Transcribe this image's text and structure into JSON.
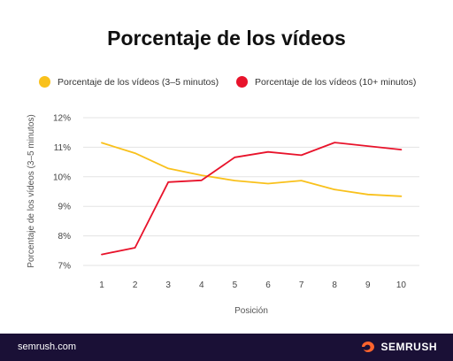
{
  "page": {
    "title": "Porcentaje de los vídeos",
    "footer_site": "semrush.com",
    "footer_brand": "SEMRUSH"
  },
  "legend": [
    {
      "label": "Porcentaje de los vídeos (3–5 minutos)",
      "color": "#f9c11c"
    },
    {
      "label": "Porcentaje de los vídeos (10+ minutos)",
      "color": "#e8132b"
    }
  ],
  "chart_data": {
    "type": "line",
    "title": "Porcentaje de los vídeos",
    "xlabel": "Posición",
    "ylabel": "Porcentaje de los vídeos (3–5 minutos)",
    "x": [
      1,
      2,
      3,
      4,
      5,
      6,
      7,
      8,
      9,
      10
    ],
    "ylim": [
      7,
      12
    ],
    "yticks": [
      7,
      8,
      9,
      10,
      11,
      12
    ],
    "ytick_labels": [
      "7%",
      "8%",
      "9%",
      "10%",
      "11%",
      "12%"
    ],
    "grid": "horizontal",
    "legend_position": "top",
    "series": [
      {
        "name": "Porcentaje de los vídeos (3–5 minutos)",
        "color": "#f9c11c",
        "values": [
          11.15,
          10.8,
          10.28,
          10.05,
          9.87,
          9.77,
          9.87,
          9.57,
          9.4,
          9.34
        ]
      },
      {
        "name": "Porcentaje de los vídeos (10+ minutos)",
        "color": "#e8132b",
        "values": [
          7.37,
          7.6,
          9.82,
          9.88,
          10.66,
          10.84,
          10.73,
          11.16,
          11.04,
          10.92
        ]
      }
    ]
  }
}
